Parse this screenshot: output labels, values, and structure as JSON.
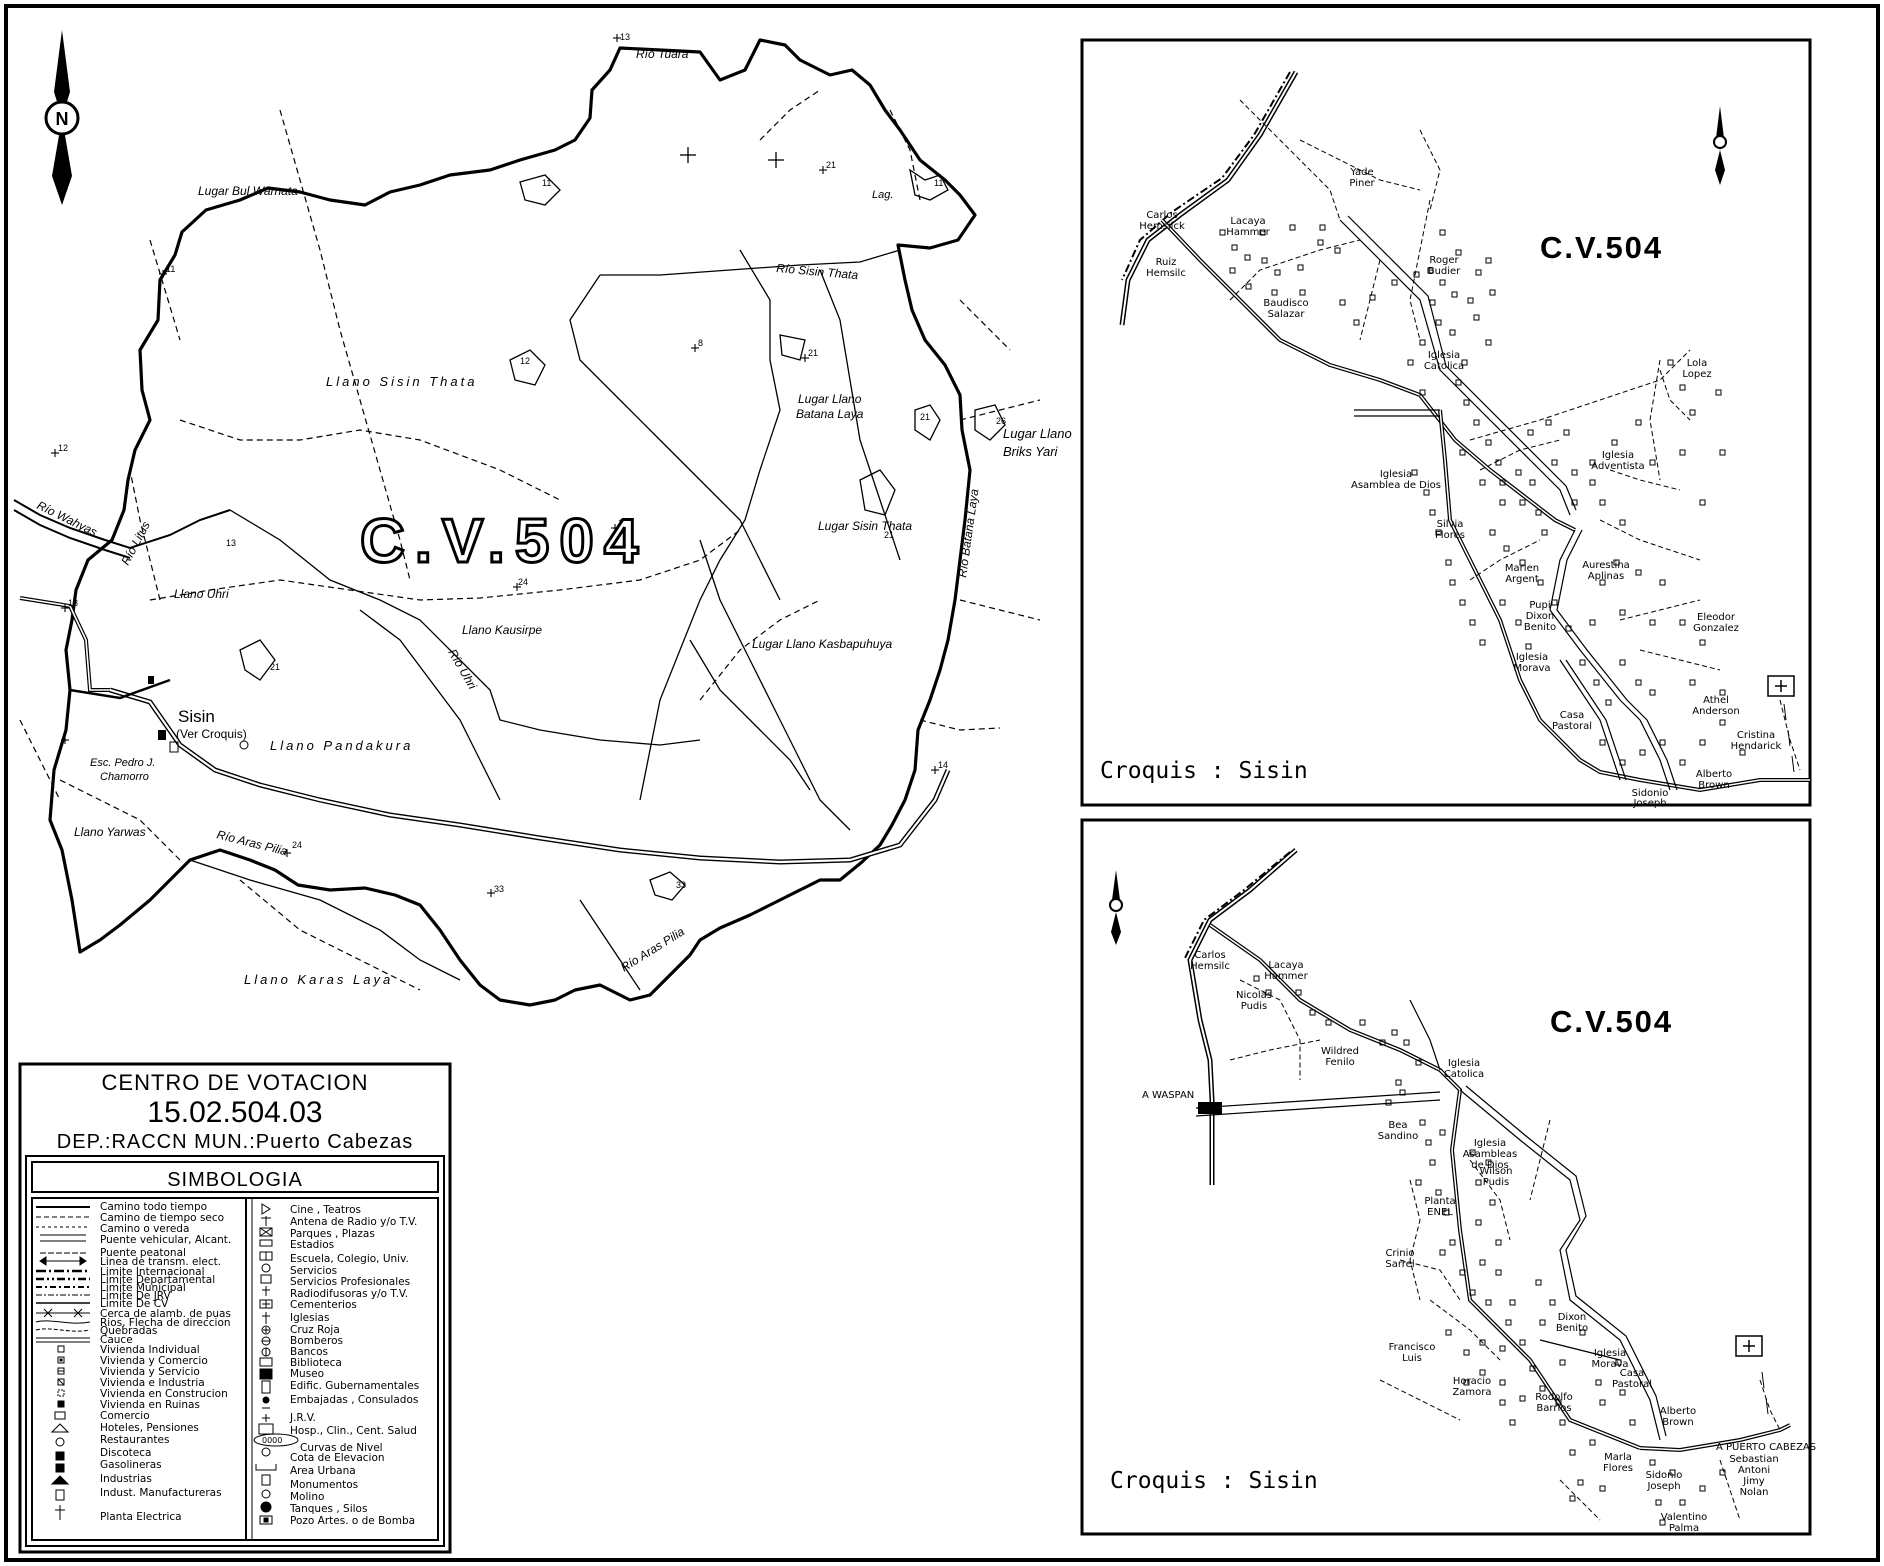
{
  "north_arrow": {
    "letter": "N"
  },
  "main_map": {
    "title": "C.V.504",
    "rivers": [
      "Río Tuara",
      "Río Sisin Thata",
      "Río Wahyas",
      "Río Litus",
      "Río Uhri",
      "Río Aras Pilia",
      "Río Aras Pilia",
      "Río Batana Laya"
    ],
    "places": [
      "Lugar Bul Warnata",
      "Llano Sisin Thata",
      "Lugar Llano Batana Laya",
      "Lugar Llano Briks Yari",
      "Lugar Sisin Thata",
      "Llano Uhri",
      "Llano Kausirpe",
      "Lugar Llano Kasbapuhuya",
      "Llano Pandakura",
      "Llano Yarwas",
      "Llano Karas Laya",
      "Lag."
    ],
    "town": "Sisin",
    "town_note": "(Ver Croquis)",
    "school": [
      "Esc. Pedro J.",
      "Chamorro"
    ],
    "elevations": [
      "13",
      "11",
      "21",
      "11",
      "11",
      "12",
      "12",
      "21",
      "21",
      "26",
      "8",
      "21",
      "12",
      "24",
      "13",
      "13",
      "21",
      "24",
      "33",
      "33",
      "14"
    ]
  },
  "info_box": {
    "heading": "CENTRO DE VOTACION",
    "code": "15.02.504.03",
    "location": "DEP.:RACCN  MUN.:Puerto Cabezas",
    "legend_title": "SIMBOLOGIA",
    "legend_left": [
      "Camino todo tiempo",
      "Camino de tiempo seco",
      "Camino o vereda",
      "Puente vehicular, Alcant.",
      "Puente peatonal",
      "Linea de transm. elect.",
      "Limite Internacional",
      "Limite Departamental",
      "Limite Municipal",
      "Limite De JRV",
      "Limite De CV",
      "Cerca de alamb. de puas",
      "Rios, Flecha de direccion",
      "Quebradas",
      "Cauce",
      "Vivienda Individual",
      "Vivienda y Comercio",
      "Vivienda y Servicio",
      "Vivienda e Industria",
      "Vivienda en Construcion",
      "Vivienda en Ruinas",
      "Comercio",
      "Hoteles, Pensiones",
      "Restaurantes",
      "Discoteca",
      "Gasolineras",
      "Industrias",
      "Indust. Manufactureras",
      "Planta Electrica"
    ],
    "legend_right": [
      "Cine , Teatros",
      "Antena de Radio y/o T.V.",
      "Parques , Plazas",
      "Estadios",
      "Escuela, Colegio, Univ.",
      "Servicios",
      "Servicios Profesionales",
      "Radiodifusoras y/o T.V.",
      "Cementerios",
      "Iglesias",
      "Cruz Roja",
      "Bomberos",
      "Bancos",
      "Biblioteca",
      "Museo",
      "Edific. Gubernamentales",
      "Embajadas , Consulados",
      "J.R.V.",
      "Hosp., Clin., Cent. Salud",
      "Curvas de Nivel",
      "Cota de Elevacion",
      "Area Urbana",
      "Monumentos",
      "Molino",
      "Tanques , Silos",
      "Pozo Artes. o de Bomba"
    ],
    "contour_sample": "0000"
  },
  "croquis_top": {
    "title": "C.V.504",
    "caption": "Croquis : Sisin",
    "labels": [
      [
        "Yade",
        "Piner"
      ],
      [
        "Carlos",
        "Hemsilck"
      ],
      [
        "Lacaya",
        "Hammer"
      ],
      [
        "Ruiz",
        "Hemsilc"
      ],
      [
        "Roger",
        "Budier"
      ],
      [
        "Baudisco",
        "Salazar"
      ],
      [
        "Iglesia",
        "Catolica"
      ],
      [
        "Lola",
        "Lopez"
      ],
      [
        "Iglesia",
        "Adventista"
      ],
      [
        "Iglesia",
        "Asamblea de Dios"
      ],
      [
        "Silvia",
        "Flores"
      ],
      [
        "Marlen",
        "Argent"
      ],
      [
        "Aurestina",
        "Aplinas"
      ],
      [
        "Pupi",
        "Dixon",
        "Benito"
      ],
      [
        "Eleodor",
        "Gonzalez"
      ],
      [
        "Iglesia",
        "Morava"
      ],
      [
        "Athel",
        "Anderson"
      ],
      [
        "Casa",
        "Pastoral"
      ],
      [
        "Cristina",
        "Hendarick"
      ],
      [
        "Alberto",
        "Brown"
      ],
      [
        "Sidonio",
        "Joseph"
      ]
    ]
  },
  "croquis_bottom": {
    "title": "C.V.504",
    "caption": "Croquis : Sisin",
    "road_west": "A WASPAN",
    "road_east": "A PUERTO CABEZAS",
    "labels": [
      [
        "Carlos",
        "Hemsilc"
      ],
      [
        "Lacaya",
        "Hammer"
      ],
      [
        "Nicolas",
        "Pudis"
      ],
      [
        "Wildred",
        "Fenilo"
      ],
      [
        "Iglesia",
        "Catolica"
      ],
      [
        "Bea",
        "Sandino"
      ],
      [
        "Iglesia",
        "Asambleas",
        "de Dios"
      ],
      [
        "Wilson",
        "Pudis"
      ],
      [
        "Planta",
        "ENEL"
      ],
      [
        "Crinio",
        "Sarrel"
      ],
      [
        "Dixon",
        "Benito"
      ],
      [
        "Iglesia",
        "Morava"
      ],
      [
        "Francisco",
        "Luis"
      ],
      [
        "Casa",
        "Pastoral"
      ],
      [
        "Horacio",
        "Zamora"
      ],
      [
        "Rodolfo",
        "Barrios"
      ],
      [
        "Alberto",
        "Brown"
      ],
      [
        "Marla",
        "Flores"
      ],
      [
        "Sidonio",
        "Joseph"
      ],
      [
        "Sebastian",
        "Antoni"
      ],
      [
        "Jimy",
        "Nolan"
      ],
      [
        "Valentino",
        "Palma"
      ]
    ]
  }
}
